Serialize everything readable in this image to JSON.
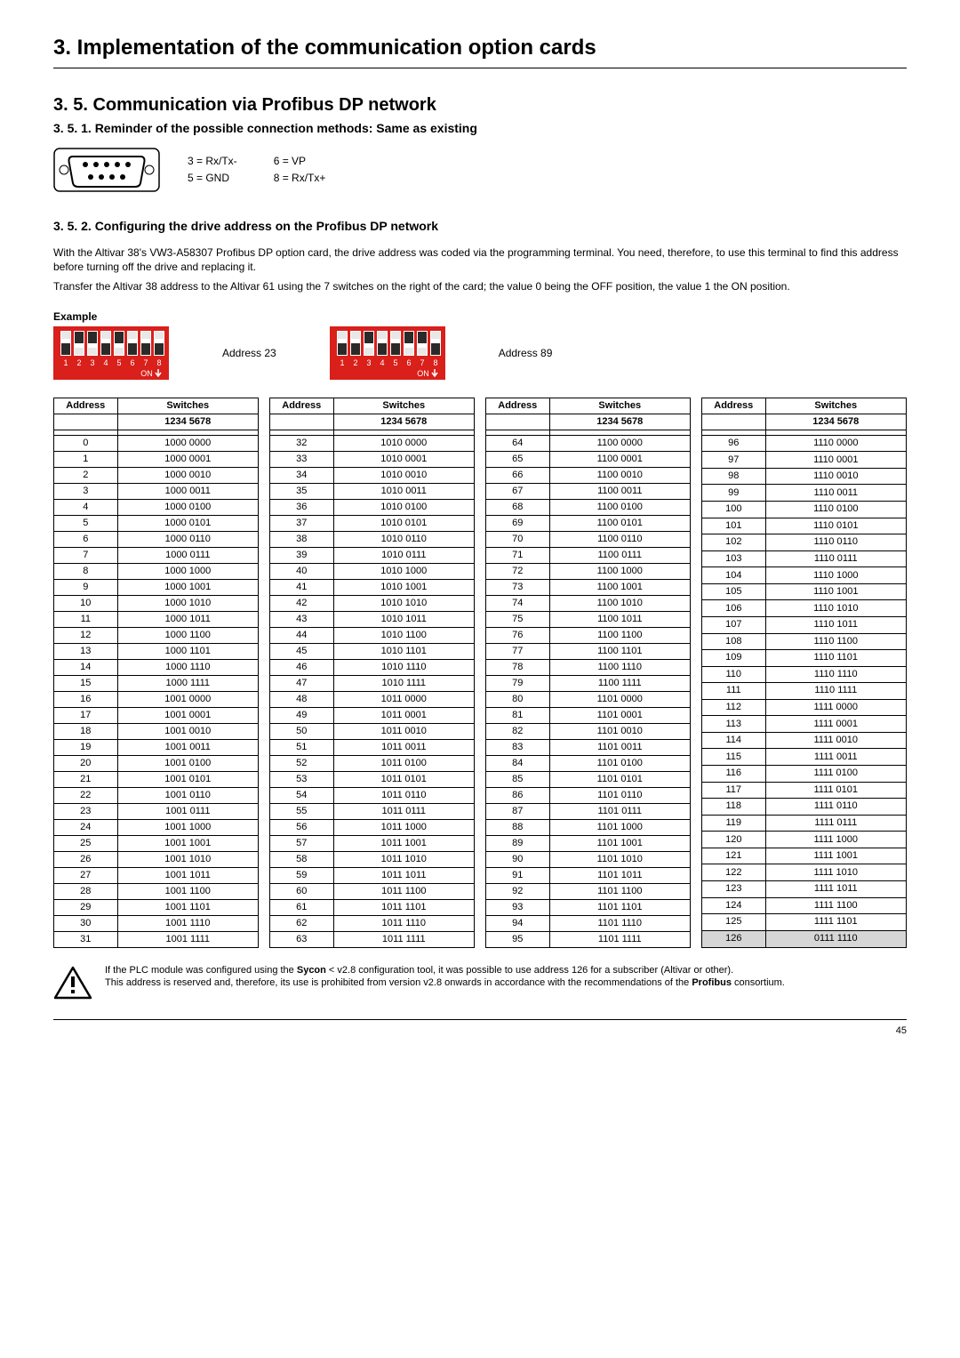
{
  "main_title": "3. Implementation of the communication option cards",
  "section_title": "3. 5. Communication via Profibus DP network",
  "sub1": "3. 5. 1. Reminder of the possible connection methods: Same as existing",
  "pins": {
    "a": "3 = Rx/Tx-",
    "b": "5 = GND",
    "c": "6 = VP",
    "d": "8 = Rx/Tx+"
  },
  "sub2": "3. 5. 2. Configuring the drive address on the Profibus DP network",
  "para1": "With the Altivar 38's VW3-A58307 Profibus DP option card, the drive address was coded via the programming terminal. You need, therefore, to use this terminal to find this address before turning off the drive and replacing it.",
  "para2": "Transfer the Altivar 38 address to the Altivar 61 using the 7 switches on the right of the card; the value 0 being the OFF position, the value 1 the ON position.",
  "example_label": "Example",
  "example_a": "Address 23",
  "example_b": "Address 89",
  "th_addr": "Address",
  "th_sw": "Switches",
  "th_sub": "1234 5678",
  "dip23_pattern": [
    1,
    0,
    0,
    1,
    0,
    1,
    1,
    1
  ],
  "dip89_pattern": [
    1,
    1,
    0,
    1,
    1,
    0,
    0,
    1
  ],
  "note1_pre": "If the PLC module was configured using the ",
  "note1_bold1": "Sycon",
  "note1_mid": " < v2.8 configuration tool, it was possible to use address 126 for a subscriber (Altivar or other).",
  "note2_pre": "This address is reserved and, therefore, its use is prohibited from version v2.8 onwards in accordance with the recommendations of the ",
  "note2_bold": "Profibus",
  "note2_post": " consortium.",
  "page_number": "45",
  "highlight_addr": 126,
  "colors": {
    "dip_red": "#d9201b",
    "dip_switch_dark": "#2a2a2a",
    "highlight_bg": "#d6d6d6"
  }
}
